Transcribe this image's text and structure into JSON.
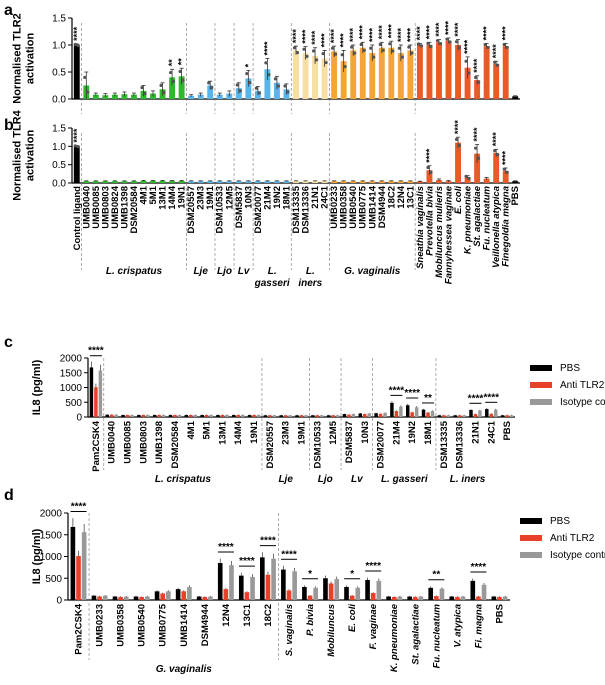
{
  "colors": {
    "control": "#000000",
    "crispatus": "#2db82d",
    "lje": "#5ab4ec",
    "ljo": "#5ab4ec",
    "lv": "#5ab4ec",
    "gasseri": "#5ab4ec",
    "iners": "#f6dfa0",
    "gvaginalis": "#f5a535",
    "bv": "#ea5a29",
    "pbs_bar": "#000000",
    "anti": "#e8412a",
    "iso": "#999999",
    "sig": "#e0261e"
  },
  "chart_data": [
    {
      "panel": "a",
      "type": "bar",
      "ylabel": "Normalised TLR2\nactivation",
      "ylim": [
        0,
        1.5
      ],
      "yticks": [
        "0.0",
        "0.5",
        "1.0",
        "1.5"
      ],
      "categories": [
        "Control ligand",
        "UMB0040",
        "UMB0085",
        "UMB0803",
        "UMB0824",
        "UMB1398",
        "DSM20584",
        "4M1",
        "5M1",
        "13M1",
        "14M4",
        "19N1",
        "DSM20557",
        "23M3",
        "19M1",
        "DSM10533",
        "12M5",
        "DSM5837",
        "10N3",
        "DSM20077",
        "21M4",
        "19N2",
        "18M1",
        "DSM13335",
        "DSM13336",
        "21N1",
        "24C1",
        "UMB0233",
        "UMB0358",
        "UMB0540",
        "UMB0775",
        "UMB1414",
        "DSM4944",
        "18C2",
        "12N4",
        "13C1",
        "Sneathia vaginalis",
        "Prevotella bivia",
        "Mobiluncus mulieris",
        "Fannyhessea vaginae",
        "E. coli",
        "K. pneumoniae",
        "St. agalactiae",
        "Fu. nucleatum",
        "Veillonella atypica",
        "Finegoldia magna",
        "PBS"
      ],
      "groups": [
        "control",
        "crispatus",
        "crispatus",
        "crispatus",
        "crispatus",
        "crispatus",
        "crispatus",
        "crispatus",
        "crispatus",
        "crispatus",
        "crispatus",
        "crispatus",
        "lje",
        "lje",
        "lje",
        "ljo",
        "ljo",
        "lv",
        "lv",
        "gasseri",
        "gasseri",
        "gasseri",
        "gasseri",
        "iners",
        "iners",
        "iners",
        "iners",
        "gvaginalis",
        "gvaginalis",
        "gvaginalis",
        "gvaginalis",
        "gvaginalis",
        "gvaginalis",
        "gvaginalis",
        "gvaginalis",
        "gvaginalis",
        "bv",
        "bv",
        "bv",
        "bv",
        "bv",
        "bv",
        "bv",
        "bv",
        "bv",
        "bv",
        "control"
      ],
      "values": [
        1.0,
        0.25,
        0.08,
        0.07,
        0.08,
        0.09,
        0.08,
        0.15,
        0.1,
        0.18,
        0.4,
        0.42,
        0.06,
        0.08,
        0.25,
        0.08,
        0.1,
        0.2,
        0.38,
        0.15,
        0.55,
        0.3,
        0.18,
        0.9,
        0.85,
        0.8,
        0.75,
        0.88,
        0.7,
        0.9,
        0.95,
        0.85,
        0.95,
        0.95,
        0.85,
        0.9,
        1.0,
        1.0,
        1.05,
        1.08,
        1.0,
        0.58,
        0.35,
        0.98,
        0.65,
        0.98,
        0.05
      ],
      "errors": [
        0.02,
        0.25,
        0.03,
        0.03,
        0.03,
        0.04,
        0.03,
        0.1,
        0.05,
        0.12,
        0.15,
        0.15,
        0.02,
        0.03,
        0.08,
        0.03,
        0.05,
        0.1,
        0.15,
        0.08,
        0.2,
        0.12,
        0.1,
        0.08,
        0.12,
        0.15,
        0.15,
        0.1,
        0.2,
        0.1,
        0.1,
        0.15,
        0.1,
        0.12,
        0.15,
        0.1,
        0.03,
        0.05,
        0.05,
        0.05,
        0.1,
        0.2,
        0.08,
        0.05,
        0.05,
        0.05,
        0.01
      ],
      "sig": [
        "****",
        "",
        "",
        "",
        "",
        "",
        "",
        "",
        "",
        "",
        "**",
        "**",
        "",
        "",
        "",
        "",
        "",
        "",
        "*",
        "",
        "****",
        "",
        "",
        "****",
        "****",
        "****",
        "****",
        "****",
        "****",
        "****",
        "****",
        "****",
        "****",
        "****",
        "****",
        "****",
        "****",
        "****",
        "****",
        "****",
        "****",
        "****",
        "****",
        "****",
        "****",
        "****",
        ""
      ]
    },
    {
      "panel": "b",
      "type": "bar",
      "ylabel": "Normalised TLR4\nactivation",
      "ylim": [
        0,
        1.5
      ],
      "yticks": [
        "0.0",
        "0.5",
        "1.0",
        "1.5"
      ],
      "values": [
        1.0,
        0.05,
        0.05,
        0.05,
        0.05,
        0.05,
        0.05,
        0.06,
        0.06,
        0.06,
        0.06,
        0.06,
        0.05,
        0.05,
        0.05,
        0.05,
        0.05,
        0.05,
        0.05,
        0.05,
        0.05,
        0.05,
        0.05,
        0.05,
        0.05,
        0.05,
        0.05,
        0.05,
        0.05,
        0.05,
        0.05,
        0.05,
        0.05,
        0.05,
        0.05,
        0.05,
        0.04,
        0.35,
        0.08,
        0.05,
        1.1,
        0.15,
        0.8,
        0.12,
        0.82,
        0.33,
        0.05
      ],
      "errors": [
        0.02,
        0.01,
        0.01,
        0.01,
        0.01,
        0.01,
        0.01,
        0.01,
        0.01,
        0.01,
        0.01,
        0.01,
        0.01,
        0.01,
        0.01,
        0.01,
        0.01,
        0.01,
        0.01,
        0.01,
        0.01,
        0.01,
        0.01,
        0.01,
        0.01,
        0.01,
        0.01,
        0.01,
        0.01,
        0.01,
        0.01,
        0.01,
        0.01,
        0.01,
        0.01,
        0.01,
        0.01,
        0.12,
        0.03,
        0.02,
        0.15,
        0.05,
        0.25,
        0.03,
        0.1,
        0.08,
        0.01
      ],
      "sig": [
        "****",
        "",
        "",
        "",
        "",
        "",
        "",
        "",
        "",
        "",
        "",
        "",
        "",
        "",
        "",
        "",
        "",
        "",
        "",
        "",
        "",
        "",
        "",
        "",
        "",
        "",
        "",
        "",
        "",
        "",
        "",
        "",
        "",
        "",
        "",
        "",
        "",
        "****",
        "",
        "",
        "****",
        "",
        "****",
        "",
        "****",
        "****",
        ""
      ],
      "group_labels": [
        {
          "label": "L. crispatus",
          "from": 1,
          "to": 11
        },
        {
          "label": "Lje",
          "from": 12,
          "to": 14
        },
        {
          "label": "Ljo",
          "from": 15,
          "to": 16
        },
        {
          "label": "Lv",
          "from": 17,
          "to": 18
        },
        {
          "label": "L.\ngasseri",
          "from": 19,
          "to": 22
        },
        {
          "label": "L.\niners",
          "from": 23,
          "to": 26
        },
        {
          "label": "G. vaginalis",
          "from": 27,
          "to": 35
        }
      ]
    },
    {
      "panel": "c",
      "type": "grouped-bar",
      "ylabel": "IL8 (pg/ml)",
      "ylim": [
        0,
        2000
      ],
      "yticks": [
        "0",
        "500",
        "1000",
        "1500",
        "2000"
      ],
      "categories": [
        "Pam2CSK4",
        "UMB0040",
        "UMB0085",
        "UMB0803",
        "UMB1398",
        "DSM20584",
        "4M1",
        "5M1",
        "13M1",
        "14M4",
        "19N1",
        "DSM20557",
        "23M3",
        "19M1",
        "DSM10533",
        "12M5",
        "DSM5837",
        "10N3",
        "DSM20077",
        "21M4",
        "19N2",
        "18M1",
        "DSM13335",
        "DSM13336",
        "21N1",
        "24C1",
        "PBS"
      ],
      "series": [
        {
          "name": "PBS",
          "values": [
            1680,
            80,
            70,
            70,
            70,
            70,
            70,
            70,
            70,
            70,
            70,
            60,
            60,
            60,
            60,
            60,
            100,
            120,
            130,
            480,
            400,
            250,
            60,
            60,
            240,
            270,
            60
          ]
        },
        {
          "name": "Anti TLR2",
          "values": [
            1010,
            80,
            70,
            70,
            70,
            70,
            70,
            70,
            70,
            70,
            70,
            60,
            60,
            60,
            60,
            60,
            80,
            100,
            110,
            200,
            160,
            150,
            60,
            60,
            100,
            110,
            60
          ]
        },
        {
          "name": "Isotype control",
          "values": [
            1580,
            80,
            70,
            70,
            70,
            70,
            70,
            70,
            70,
            70,
            70,
            60,
            60,
            60,
            60,
            60,
            100,
            120,
            140,
            350,
            330,
            200,
            60,
            60,
            220,
            250,
            60
          ]
        }
      ],
      "sig_lines": [
        {
          "from": 0,
          "to": 0,
          "label": "****"
        },
        {
          "from": 19,
          "to": 19,
          "label": "****"
        },
        {
          "from": 20,
          "to": 20,
          "label": "****"
        },
        {
          "from": 21,
          "to": 21,
          "label": "**"
        },
        {
          "from": 24,
          "to": 24,
          "label": "****"
        },
        {
          "from": 25,
          "to": 25,
          "label": "****"
        }
      ],
      "group_labels": [
        {
          "label": "L. crispatus",
          "from": 1,
          "to": 10
        },
        {
          "label": "Lje",
          "from": 11,
          "to": 13
        },
        {
          "label": "Ljo",
          "from": 14,
          "to": 15
        },
        {
          "label": "Lv",
          "from": 16,
          "to": 17
        },
        {
          "label": "L. gasseri",
          "from": 18,
          "to": 21
        },
        {
          "label": "L. iners",
          "from": 22,
          "to": 25
        }
      ]
    },
    {
      "panel": "d",
      "type": "grouped-bar",
      "ylabel": "IL8 (pg/ml)",
      "ylim": [
        0,
        2000
      ],
      "yticks": [
        "0",
        "500",
        "1000",
        "1500",
        "2000"
      ],
      "categories": [
        "Pam2CSK4",
        "UMB0233",
        "UMB0358",
        "UMB0540",
        "UMB0775",
        "UMB1414",
        "DSM4944",
        "12N4",
        "13C1",
        "18C2",
        "S. vaginalis",
        "P. bivia",
        "Mobiluncus",
        "E. coli",
        "F. vaginae",
        "K. pneumoniae",
        "St. agalactiae",
        "Fu. nucleatum",
        "V. atypica",
        "Fi. magna",
        "PBS"
      ],
      "series": [
        {
          "name": "PBS",
          "values": [
            1680,
            100,
            80,
            80,
            200,
            250,
            80,
            850,
            560,
            980,
            700,
            300,
            500,
            300,
            460,
            80,
            80,
            280,
            80,
            440,
            80
          ]
        },
        {
          "name": "Anti TLR2",
          "values": [
            1010,
            80,
            70,
            70,
            150,
            200,
            70,
            250,
            180,
            580,
            220,
            100,
            380,
            100,
            160,
            70,
            70,
            90,
            70,
            80,
            70
          ]
        },
        {
          "name": "Isotype control",
          "values": [
            1560,
            100,
            80,
            80,
            200,
            300,
            80,
            800,
            530,
            950,
            660,
            280,
            480,
            280,
            440,
            80,
            80,
            260,
            80,
            350,
            80
          ]
        }
      ],
      "sig_lines": [
        {
          "from": 0,
          "to": 0,
          "label": "****"
        },
        {
          "from": 7,
          "to": 7,
          "label": "****"
        },
        {
          "from": 8,
          "to": 8,
          "label": "****"
        },
        {
          "from": 9,
          "to": 9,
          "label": "****"
        },
        {
          "from": 10,
          "to": 10,
          "label": "****"
        },
        {
          "from": 11,
          "to": 11,
          "label": "*"
        },
        {
          "from": 13,
          "to": 13,
          "label": "*"
        },
        {
          "from": 14,
          "to": 14,
          "label": "****"
        },
        {
          "from": 17,
          "to": 17,
          "label": "**"
        },
        {
          "from": 19,
          "to": 19,
          "label": "****"
        }
      ],
      "group_labels": [
        {
          "label": "G. vaginalis",
          "from": 1,
          "to": 9
        }
      ]
    }
  ],
  "panel_letters": [
    "a",
    "b",
    "c",
    "d"
  ],
  "legend": {
    "entries": [
      "PBS",
      "Anti TLR2",
      "Isotype control"
    ]
  }
}
